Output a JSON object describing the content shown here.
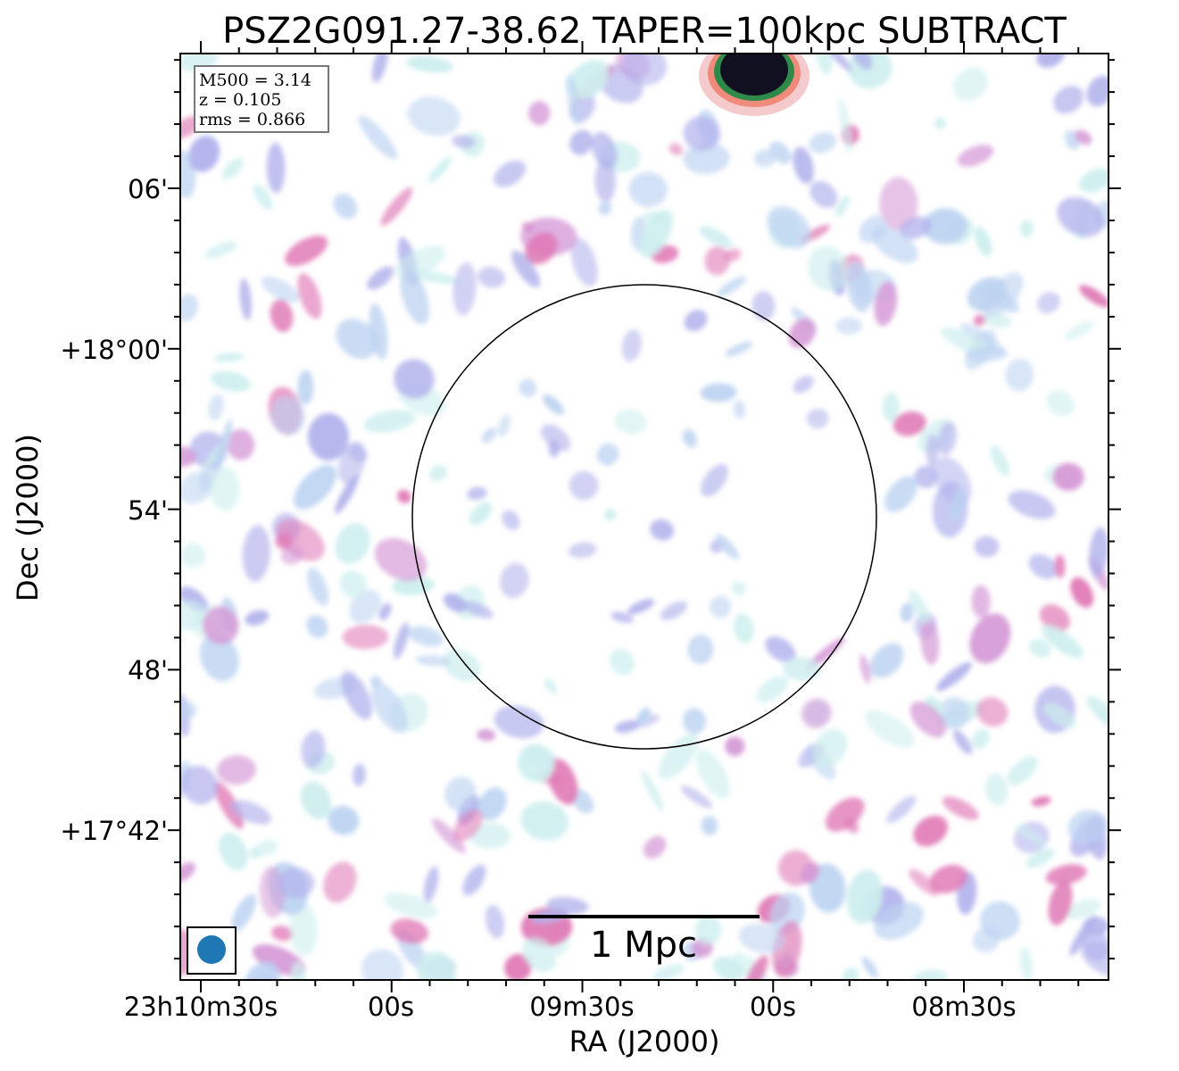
{
  "title": "PSZ2G091.27-38.62 TAPER=100kpc SUBTRACT",
  "axes": {
    "xlabel": "RA (J2000)",
    "ylabel": "Dec (J2000)",
    "x_ticks": [
      "23h10m30s",
      "00s",
      "09m30s",
      "00s",
      "08m30s"
    ],
    "y_ticks": [
      "06'",
      "+18°00'",
      "54'",
      "48'",
      "+17°42'"
    ]
  },
  "info_box": {
    "line1": "M500 = 3.14",
    "line2": "z = 0.105",
    "line3": "rms = 0.866"
  },
  "scale_bar": {
    "label": "1 Mpc"
  },
  "beam": {
    "color": "#1f77b4"
  },
  "colors": {
    "faint": "#cdeeee",
    "low": "#bcd3f1",
    "mid": "#b1b2ec",
    "high": "#d59ad6",
    "peak": "#e07ab6",
    "bright_outer": "#f08a7a",
    "bright_mid": "#2f8a4a",
    "bright_core": "#101020",
    "circle": "#000000"
  }
}
